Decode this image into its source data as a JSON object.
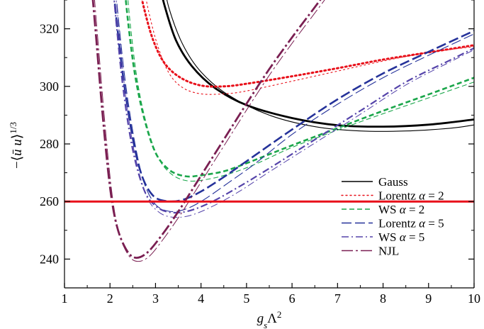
{
  "chart_data": {
    "type": "line",
    "title": "",
    "xlabel": "g_sΛ²",
    "ylabel": "−⟨ū u⟩^{1/3}",
    "xlim": [
      1,
      10
    ],
    "ylim": [
      230,
      330
    ],
    "x_ticks": [
      "1",
      "2",
      "3",
      "4",
      "5",
      "6",
      "7",
      "8",
      "9",
      "10"
    ],
    "y_ticks": [
      "240",
      "260",
      "280",
      "300",
      "320"
    ],
    "y_tick_values": [
      240,
      260,
      280,
      300,
      320
    ],
    "grid": false,
    "legend_position": "lower-right",
    "reference_line": {
      "y": 260,
      "color": "#e8101a"
    },
    "series": [
      {
        "name": "Gauss",
        "color": "#000000",
        "dash": "solid",
        "lines": [
          {
            "width": 2.8,
            "points": [
              [
                3.05,
                338
              ],
              [
                3.2,
                328
              ],
              [
                3.45,
                316
              ],
              [
                3.8,
                307
              ],
              [
                4.3,
                299.5
              ],
              [
                5,
                293.5
              ],
              [
                6,
                289
              ],
              [
                7,
                286.5
              ],
              [
                8,
                286
              ],
              [
                9,
                286.7
              ],
              [
                10,
                288.5
              ]
            ]
          },
          {
            "width": 1.1,
            "points": [
              [
                3.15,
                338
              ],
              [
                3.3,
                327
              ],
              [
                3.6,
                314.5
              ],
              [
                4,
                305
              ],
              [
                4.6,
                297
              ],
              [
                5.5,
                290
              ],
              [
                6.5,
                286
              ],
              [
                7.5,
                284.5
              ],
              [
                8.5,
                284.5
              ],
              [
                9.5,
                285.5
              ],
              [
                10,
                286.6
              ]
            ]
          }
        ]
      },
      {
        "name": "Lorentz α = 2",
        "color": "#e8101a",
        "dash": "dot",
        "lines": [
          {
            "width": 3.0,
            "points": [
              [
                2.6,
                338
              ],
              [
                2.75,
                327
              ],
              [
                2.95,
                316
              ],
              [
                3.2,
                308
              ],
              [
                3.55,
                303
              ],
              [
                4,
                300.3
              ],
              [
                4.5,
                300
              ],
              [
                5,
                300.9
              ],
              [
                6,
                303.5
              ],
              [
                7,
                306.3
              ],
              [
                8,
                309.3
              ],
              [
                9,
                311.8
              ],
              [
                10,
                314.3
              ]
            ]
          },
          {
            "width": 1.1,
            "points": [
              [
                2.7,
                338
              ],
              [
                2.85,
                326
              ],
              [
                3.05,
                314
              ],
              [
                3.3,
                304.5
              ],
              [
                3.6,
                299.5
              ],
              [
                4,
                297.4
              ],
              [
                4.5,
                297.4
              ],
              [
                5,
                298.4
              ],
              [
                6,
                301.8
              ],
              [
                7,
                305.3
              ],
              [
                8,
                308.8
              ],
              [
                9,
                311.8
              ],
              [
                10,
                313.8
              ]
            ]
          }
        ]
      },
      {
        "name": "WS  α = 2",
        "color": "#1aa64a",
        "dash": "dash-short",
        "lines": [
          {
            "width": 2.6,
            "points": [
              [
                2.3,
                338
              ],
              [
                2.4,
                322
              ],
              [
                2.55,
                304
              ],
              [
                2.75,
                289
              ],
              [
                3,
                277
              ],
              [
                3.3,
                271
              ],
              [
                3.65,
                268.8
              ],
              [
                4,
                269.1
              ],
              [
                4.5,
                270.5
              ],
              [
                5,
                273.3
              ],
              [
                6,
                279.5
              ],
              [
                7,
                285.5
              ],
              [
                8,
                291.5
              ],
              [
                9,
                297.2
              ],
              [
                10,
                303
              ]
            ]
          },
          {
            "width": 1.1,
            "points": [
              [
                2.35,
                338
              ],
              [
                2.45,
                321
              ],
              [
                2.6,
                302
              ],
              [
                2.8,
                287
              ],
              [
                3.05,
                275.5
              ],
              [
                3.35,
                269.5
              ],
              [
                3.7,
                267.2
              ],
              [
                4.1,
                267.6
              ],
              [
                4.6,
                269.5
              ],
              [
                5.2,
                273
              ],
              [
                6,
                278.8
              ],
              [
                7,
                284.8
              ],
              [
                8,
                290.5
              ],
              [
                9,
                296
              ],
              [
                10,
                301.5
              ]
            ]
          }
        ]
      },
      {
        "name": "Lorentz α = 5",
        "color": "#25329a",
        "dash": "dash-long",
        "lines": [
          {
            "width": 2.6,
            "points": [
              [
                2.05,
                338
              ],
              [
                2.15,
                322
              ],
              [
                2.3,
                302
              ],
              [
                2.5,
                282
              ],
              [
                2.7,
                269
              ],
              [
                2.95,
                262
              ],
              [
                3.25,
                260.1
              ],
              [
                3.6,
                260.6
              ],
              [
                4,
                263.5
              ],
              [
                4.5,
                268.5
              ],
              [
                5,
                274
              ],
              [
                6,
                285
              ],
              [
                7,
                295.5
              ],
              [
                8,
                304.5
              ],
              [
                9,
                312
              ],
              [
                10,
                319.3
              ]
            ]
          },
          {
            "width": 1.1,
            "points": [
              [
                2.1,
                338
              ],
              [
                2.2,
                321
              ],
              [
                2.35,
                300
              ],
              [
                2.55,
                280
              ],
              [
                2.75,
                266.5
              ],
              [
                3,
                259
              ],
              [
                3.3,
                256.6
              ],
              [
                3.65,
                257.3
              ],
              [
                4.05,
                260.5
              ],
              [
                4.6,
                266.5
              ],
              [
                5.2,
                273.3
              ],
              [
                6,
                283.3
              ],
              [
                7,
                293.8
              ],
              [
                8,
                303
              ],
              [
                9,
                310.8
              ],
              [
                10,
                318.2
              ]
            ]
          }
        ]
      },
      {
        "name": "WS  α = 5",
        "color": "#5544aa",
        "dash": "dash-dot",
        "lines": [
          {
            "width": 2.2,
            "points": [
              [
                2.05,
                338
              ],
              [
                2.15,
                320
              ],
              [
                2.3,
                298
              ],
              [
                2.5,
                278
              ],
              [
                2.75,
                264
              ],
              [
                3,
                258.5
              ],
              [
                3.3,
                256.3
              ],
              [
                3.7,
                256.6
              ],
              [
                4.2,
                259.6
              ],
              [
                4.8,
                264.8
              ],
              [
                5.5,
                271.5
              ],
              [
                6.5,
                281.5
              ],
              [
                7.5,
                291.5
              ],
              [
                8.5,
                301.5
              ],
              [
                9.5,
                309.3
              ],
              [
                10,
                313.3
              ]
            ]
          },
          {
            "width": 1.0,
            "points": [
              [
                2.1,
                338
              ],
              [
                2.2,
                319
              ],
              [
                2.35,
                296
              ],
              [
                2.55,
                276
              ],
              [
                2.8,
                262
              ],
              [
                3.05,
                256.6
              ],
              [
                3.35,
                254.6
              ],
              [
                3.75,
                255.1
              ],
              [
                4.25,
                258.3
              ],
              [
                4.85,
                263.6
              ],
              [
                5.5,
                270.3
              ],
              [
                6.5,
                280.3
              ],
              [
                7.5,
                290.3
              ],
              [
                8.5,
                300.5
              ],
              [
                9.5,
                308.7
              ],
              [
                10,
                312.7
              ]
            ]
          }
        ]
      },
      {
        "name": "NJL",
        "color": "#7a1f52",
        "dash": "dash-dot-long",
        "lines": [
          {
            "width": 2.8,
            "points": [
              [
                1.58,
                338
              ],
              [
                1.7,
                316
              ],
              [
                1.85,
                288
              ],
              [
                2,
                265
              ],
              [
                2.15,
                251.5
              ],
              [
                2.35,
                243.5
              ],
              [
                2.55,
                240.5
              ],
              [
                2.8,
                242
              ],
              [
                3.1,
                247.5
              ],
              [
                3.5,
                256.5
              ],
              [
                4,
                269
              ],
              [
                4.5,
                281.5
              ],
              [
                5,
                294
              ],
              [
                5.5,
                306
              ],
              [
                6,
                317
              ],
              [
                6.5,
                327.5
              ],
              [
                6.9,
                336
              ]
            ]
          },
          {
            "width": 1.0,
            "points": [
              [
                1.62,
                338
              ],
              [
                1.75,
                313
              ],
              [
                1.9,
                285
              ],
              [
                2.05,
                262
              ],
              [
                2.2,
                249
              ],
              [
                2.4,
                241.5
              ],
              [
                2.6,
                239.2
              ],
              [
                2.85,
                240.8
              ],
              [
                3.15,
                246.5
              ],
              [
                3.55,
                255.5
              ],
              [
                4.05,
                268
              ],
              [
                4.55,
                280.5
              ],
              [
                5.05,
                293
              ],
              [
                5.55,
                305
              ],
              [
                6.05,
                316
              ],
              [
                6.55,
                326.5
              ],
              [
                6.95,
                335
              ]
            ]
          }
        ]
      }
    ]
  }
}
